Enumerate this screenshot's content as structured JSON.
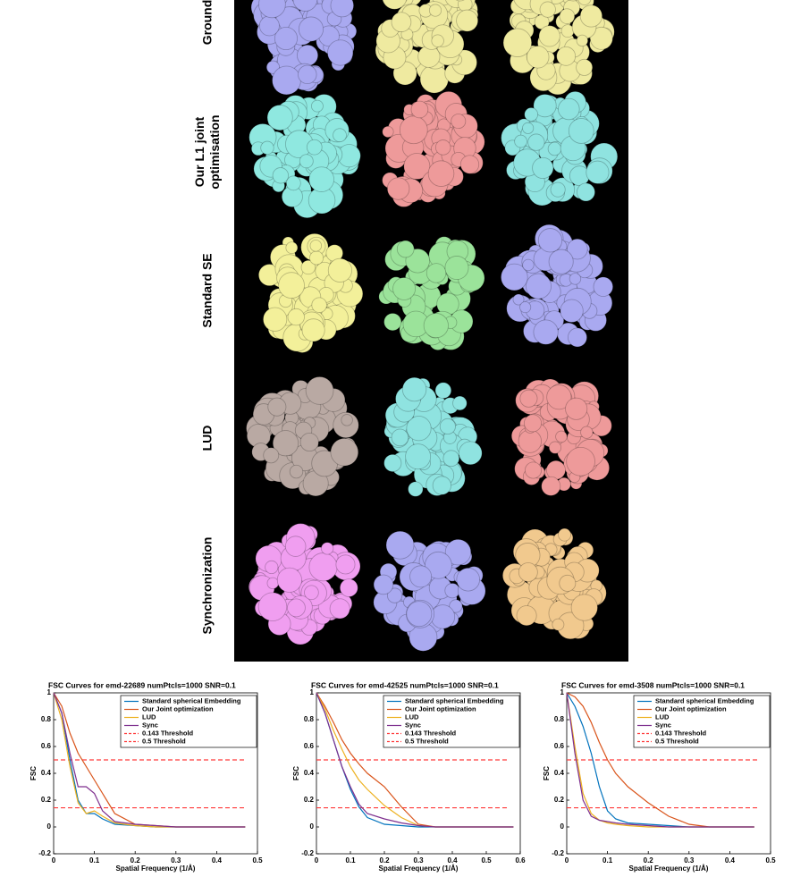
{
  "figure": {
    "row_labels": [
      [
        "Ground"
      ],
      [
        "Our L1 joint",
        "optimisation"
      ],
      [
        "Standard SE"
      ],
      [
        "LUD"
      ],
      [
        "Synchronization"
      ]
    ]
  },
  "chart_data": [
    {
      "type": "line",
      "title": "FSC Curves for emd-22689 numPtcls=1000 SNR=0.1",
      "x_label": "Spatial Frequency (1/Å)",
      "y_label": "FSC",
      "x": [
        0,
        0.02,
        0.04,
        0.06,
        0.08,
        0.1,
        0.12,
        0.15,
        0.2,
        0.25,
        0.3,
        0.35,
        0.4,
        0.47
      ],
      "series": [
        {
          "name": "Standard spherical Embedding",
          "color": "#0072bd",
          "values": [
            1,
            0.85,
            0.5,
            0.2,
            0.1,
            0.1,
            0.06,
            0.02,
            0.01,
            0,
            0,
            0,
            0,
            0
          ]
        },
        {
          "name": "Our Joint optimization",
          "color": "#d95319",
          "values": [
            1,
            0.9,
            0.7,
            0.55,
            0.45,
            0.35,
            0.25,
            0.1,
            0.02,
            0.01,
            0,
            0,
            0,
            0
          ]
        },
        {
          "name": "LUD",
          "color": "#edb120",
          "values": [
            1,
            0.8,
            0.45,
            0.18,
            0.1,
            0.12,
            0.08,
            0.03,
            0.01,
            0,
            0,
            0,
            0,
            0
          ]
        },
        {
          "name": "Sync",
          "color": "#7e2f8e",
          "values": [
            1,
            0.85,
            0.55,
            0.3,
            0.3,
            0.25,
            0.12,
            0.04,
            0.02,
            0.01,
            0,
            0,
            0,
            0
          ]
        }
      ],
      "thresholds": [
        {
          "name": "0.143 Threshold",
          "value": 0.143,
          "color": "#ff3b3b"
        },
        {
          "name": "0.5 Threshold",
          "value": 0.5,
          "color": "#ff3b3b"
        }
      ],
      "xlim": [
        0,
        0.5
      ],
      "xticks": [
        0,
        0.1,
        0.2,
        0.3,
        0.4,
        0.5
      ],
      "ylim": [
        -0.2,
        1
      ],
      "yticks": [
        -0.2,
        0,
        0.2,
        0.4,
        0.6,
        0.8,
        1
      ]
    },
    {
      "type": "line",
      "title": "FSC Curves for emd-42525 numPtcls=1000 SNR=0.1",
      "x_label": "Spatial Frequency (1/Å)",
      "y_label": "FSC",
      "x": [
        0,
        0.025,
        0.05,
        0.075,
        0.1,
        0.125,
        0.15,
        0.2,
        0.25,
        0.3,
        0.35,
        0.4,
        0.5,
        0.58
      ],
      "series": [
        {
          "name": "Standard spherical Embedding",
          "color": "#0072bd",
          "values": [
            1,
            0.85,
            0.65,
            0.45,
            0.28,
            0.15,
            0.07,
            0.02,
            0.01,
            0,
            0,
            0,
            0,
            0
          ]
        },
        {
          "name": "Our Joint optimization",
          "color": "#d95319",
          "values": [
            1,
            0.9,
            0.78,
            0.65,
            0.55,
            0.47,
            0.4,
            0.3,
            0.15,
            0.02,
            0,
            0,
            0,
            0
          ]
        },
        {
          "name": "LUD",
          "color": "#edb120",
          "values": [
            1,
            0.88,
            0.72,
            0.58,
            0.45,
            0.35,
            0.28,
            0.16,
            0.07,
            0.01,
            0,
            0,
            0,
            0
          ]
        },
        {
          "name": "Sync",
          "color": "#7e2f8e",
          "values": [
            1,
            0.85,
            0.65,
            0.45,
            0.3,
            0.17,
            0.1,
            0.06,
            0.03,
            0.01,
            0,
            0,
            0,
            0
          ]
        }
      ],
      "thresholds": [
        {
          "name": "0.143 Threshold",
          "value": 0.143,
          "color": "#ff3b3b"
        },
        {
          "name": "0.5 Threshold",
          "value": 0.5,
          "color": "#ff3b3b"
        }
      ],
      "xlim": [
        0,
        0.6
      ],
      "xticks": [
        0,
        0.1,
        0.2,
        0.3,
        0.4,
        0.5,
        0.6
      ],
      "ylim": [
        -0.2,
        1
      ],
      "yticks": [
        -0.2,
        0,
        0.2,
        0.4,
        0.6,
        0.8,
        1
      ]
    },
    {
      "type": "line",
      "title": "FSC Curves for emd-3508 numPtcls=1000 SNR=0.1",
      "x_label": "Spatial Frequency (1/Å)",
      "y_label": "FSC",
      "x": [
        0,
        0.02,
        0.04,
        0.06,
        0.08,
        0.1,
        0.12,
        0.15,
        0.2,
        0.25,
        0.3,
        0.35,
        0.4,
        0.46
      ],
      "series": [
        {
          "name": "Standard spherical Embedding",
          "color": "#0072bd",
          "values": [
            1,
            0.9,
            0.75,
            0.55,
            0.3,
            0.12,
            0.06,
            0.03,
            0.02,
            0.01,
            0,
            0,
            0,
            0
          ]
        },
        {
          "name": "Our Joint optimization",
          "color": "#d95319",
          "values": [
            1,
            0.97,
            0.9,
            0.78,
            0.63,
            0.5,
            0.4,
            0.3,
            0.18,
            0.08,
            0.02,
            0,
            0,
            0
          ]
        },
        {
          "name": "LUD",
          "color": "#edb120",
          "values": [
            1,
            0.6,
            0.25,
            0.1,
            0.05,
            0.03,
            0.02,
            0.01,
            0,
            0,
            0,
            0,
            0,
            0
          ]
        },
        {
          "name": "Sync",
          "color": "#7e2f8e",
          "values": [
            1,
            0.55,
            0.2,
            0.08,
            0.05,
            0.04,
            0.03,
            0.02,
            0.01,
            0,
            0,
            0,
            0,
            0
          ]
        }
      ],
      "thresholds": [
        {
          "name": "0.143 Threshold",
          "value": 0.143,
          "color": "#ff3b3b"
        },
        {
          "name": "0.5 Threshold",
          "value": 0.5,
          "color": "#ff3b3b"
        }
      ],
      "xlim": [
        0,
        0.5
      ],
      "xticks": [
        0,
        0.1,
        0.2,
        0.3,
        0.4,
        0.5
      ],
      "ylim": [
        -0.2,
        1
      ],
      "yticks": [
        -0.2,
        0,
        0.2,
        0.4,
        0.6,
        0.8,
        1
      ]
    }
  ]
}
